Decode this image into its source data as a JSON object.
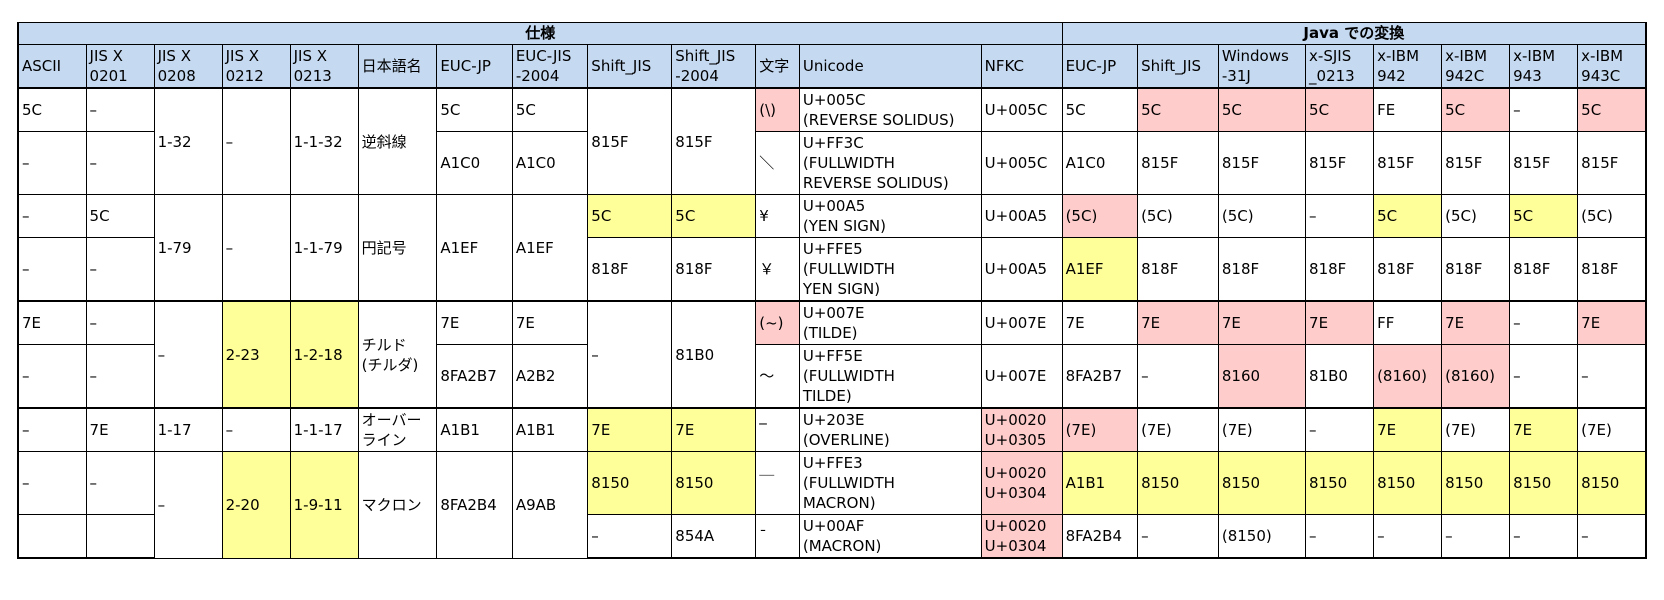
{
  "header": {
    "spec": "仕様",
    "java": "Java での変換",
    "columns": {
      "ascii": "ASCII",
      "jisx0201": "JIS X\n0201",
      "jisx0208": "JIS X\n0208",
      "jisx0212": "JIS X\n0212",
      "jisx0213": "JIS X\n0213",
      "japanese_name": "日本語名",
      "euc_jp": "EUC-JP",
      "euc_jis_2004": "EUC-JIS\n-2004",
      "shift_jis": "Shift_JIS",
      "shift_jis_2004": "Shift_JIS\n-2004",
      "char": "文字",
      "unicode": "Unicode",
      "nfkc": "NFKC",
      "j_euc_jp": "EUC-JP",
      "j_shift_jis": "Shift_JIS",
      "j_windows_31j": "Windows\n-31J",
      "j_x_sjis_0213": "x-SJIS\n_0213",
      "j_x_ibm942": "x-IBM\n942",
      "j_x_ibm942c": "x-IBM\n942C",
      "j_x_ibm943": "x-IBM\n943",
      "j_x_ibm943c": "x-IBM\n943C"
    }
  },
  "rows": {
    "r1": {
      "ascii": "5C",
      "jisx0201": "–",
      "jisx0208": "1-32",
      "jisx0212": "–",
      "jisx0213": "1-1-32",
      "name": "逆斜線",
      "euc_jp": "5C",
      "euc_jis_2004": "5C",
      "shift_jis": "815F",
      "shift_jis_2004": "815F",
      "char": "(\\)",
      "unicode": "U+005C\n(REVERSE SOLIDUS)",
      "nfkc": "U+005C",
      "j_euc_jp": "5C",
      "j_shift_jis": "5C",
      "j_windows_31j": "5C",
      "j_x_sjis_0213": "5C",
      "j_x_ibm942": "FE",
      "j_x_ibm942c": "5C",
      "j_x_ibm943": "–",
      "j_x_ibm943c": "5C"
    },
    "r2": {
      "ascii": "–",
      "jisx0201": "–",
      "euc_jp": "A1C0",
      "euc_jis_2004": "A1C0",
      "char": "＼",
      "unicode": "U+FF3C\n(FULLWIDTH\n REVERSE SOLIDUS)",
      "nfkc": "U+005C",
      "j_euc_jp": "A1C0",
      "j_shift_jis": "815F",
      "j_windows_31j": "815F",
      "j_x_sjis_0213": "815F",
      "j_x_ibm942": "815F",
      "j_x_ibm942c": "815F",
      "j_x_ibm943": "815F",
      "j_x_ibm943c": "815F"
    },
    "r3": {
      "ascii": "–",
      "jisx0201": "5C",
      "jisx0208": "1-79",
      "jisx0212": "–",
      "jisx0213": "1-1-79",
      "name": "円記号",
      "euc_jp": "A1EF",
      "euc_jis_2004": "A1EF",
      "shift_jis": "5C",
      "shift_jis_2004": "5C",
      "char": "¥",
      "unicode": "U+00A5\n(YEN SIGN)",
      "nfkc": "U+00A5",
      "j_euc_jp": "(5C)",
      "j_shift_jis": "(5C)",
      "j_windows_31j": "(5C)",
      "j_x_sjis_0213": "–",
      "j_x_ibm942": "5C",
      "j_x_ibm942c": "(5C)",
      "j_x_ibm943": "5C",
      "j_x_ibm943c": "(5C)"
    },
    "r4": {
      "ascii": "–",
      "jisx0201": "–",
      "shift_jis": "818F",
      "shift_jis_2004": "818F",
      "char": "￥",
      "unicode": "U+FFE5\n(FULLWIDTH\n YEN SIGN)",
      "nfkc": "U+00A5",
      "j_euc_jp": "A1EF",
      "j_shift_jis": "818F",
      "j_windows_31j": "818F",
      "j_x_sjis_0213": "818F",
      "j_x_ibm942": "818F",
      "j_x_ibm942c": "818F",
      "j_x_ibm943": "818F",
      "j_x_ibm943c": "818F"
    },
    "r5": {
      "ascii": "7E",
      "jisx0201": "–",
      "jisx0208": "–",
      "jisx0212": "2-23",
      "jisx0213": "1-2-18",
      "name": "チルド\n(チルダ)",
      "euc_jp": "7E",
      "euc_jis_2004": "7E",
      "shift_jis": "–",
      "shift_jis_2004": "81B0",
      "char": "(~)",
      "unicode": "U+007E\n(TILDE)",
      "nfkc": "U+007E",
      "j_euc_jp": "7E",
      "j_shift_jis": "7E",
      "j_windows_31j": "7E",
      "j_x_sjis_0213": "7E",
      "j_x_ibm942": "FF",
      "j_x_ibm942c": "7E",
      "j_x_ibm943": "–",
      "j_x_ibm943c": "7E"
    },
    "r6": {
      "ascii": "–",
      "jisx0201": "–",
      "euc_jp": "8FA2B7",
      "euc_jis_2004": "A2B2",
      "char": "～",
      "unicode": "U+FF5E\n(FULLWIDTH\n TILDE)",
      "nfkc": "U+007E",
      "j_euc_jp": "8FA2B7",
      "j_shift_jis": "–",
      "j_windows_31j": "8160",
      "j_x_sjis_0213": "81B0",
      "j_x_ibm942": "(8160)",
      "j_x_ibm942c": "(8160)",
      "j_x_ibm943": "–",
      "j_x_ibm943c": "–"
    },
    "r7": {
      "ascii": "–",
      "jisx0201": "7E",
      "jisx0208": "1-17",
      "jisx0212": "–",
      "jisx0213": "1-1-17",
      "name": "オーバー\nライン",
      "euc_jp": "A1B1",
      "euc_jis_2004": "A1B1",
      "shift_jis": "7E",
      "shift_jis_2004": "7E",
      "char": "‾",
      "unicode": "U+203E\n(OVERLINE)",
      "nfkc": "U+0020\nU+0305",
      "j_euc_jp": "(7E)",
      "j_shift_jis": "(7E)",
      "j_windows_31j": "(7E)",
      "j_x_sjis_0213": "–",
      "j_x_ibm942": "7E",
      "j_x_ibm942c": "(7E)",
      "j_x_ibm943": "7E",
      "j_x_ibm943c": "(7E)"
    },
    "r8": {
      "ascii": "–",
      "jisx0201": "–",
      "jisx0208": "–",
      "jisx0212": "2-20",
      "jisx0213": "1-9-11",
      "name": "マクロン",
      "euc_jp": "8FA2B4",
      "euc_jis_2004": "A9AB",
      "shift_jis": "8150",
      "shift_jis_2004": "8150",
      "char": "￣",
      "unicode": "U+FFE3\n(FULLWIDTH\n MACRON)",
      "nfkc": "U+0020\nU+0304",
      "j_euc_jp": "A1B1",
      "j_shift_jis": "8150",
      "j_windows_31j": "8150",
      "j_x_sjis_0213": "8150",
      "j_x_ibm942": "8150",
      "j_x_ibm942c": "8150",
      "j_x_ibm943": "8150",
      "j_x_ibm943c": "8150"
    },
    "r9": {
      "ascii": "",
      "jisx0201": "",
      "shift_jis": "–",
      "shift_jis_2004": "854A",
      "char": "¯",
      "unicode": "U+00AF\n(MACRON)",
      "nfkc": "U+0020\nU+0304",
      "j_euc_jp": "8FA2B4",
      "j_shift_jis": "–",
      "j_windows_31j": "(8150)",
      "j_x_sjis_0213": "–",
      "j_x_ibm942": "–",
      "j_x_ibm942c": "–",
      "j_x_ibm943": "–",
      "j_x_ibm943c": "–"
    }
  },
  "colors": {
    "header_bg": "#c5d9f1",
    "highlight_yellow": "#ffff99",
    "highlight_pink": "#ffcccc"
  }
}
